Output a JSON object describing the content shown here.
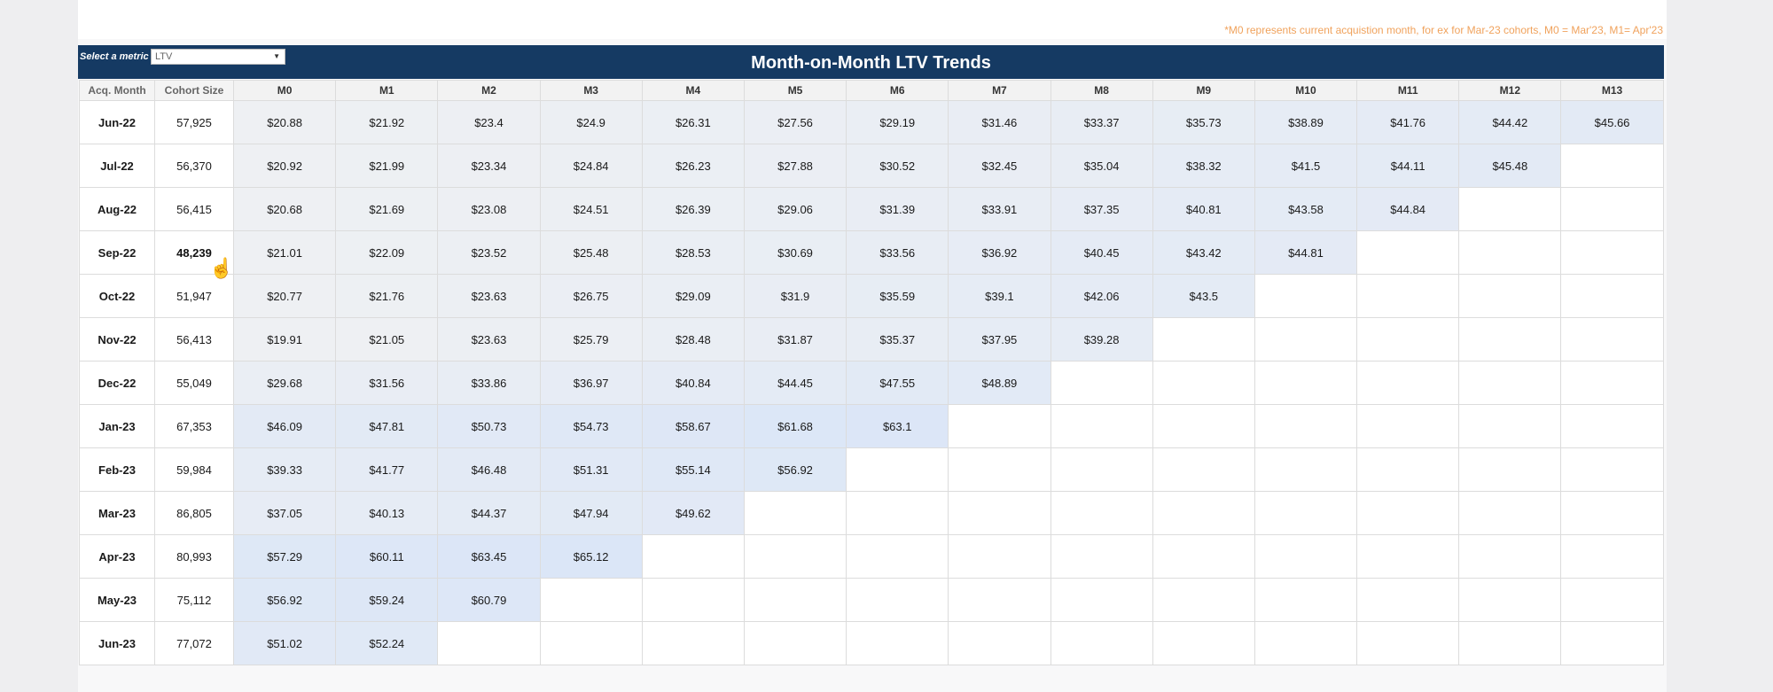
{
  "footnote": "*M0 represents current acquistion month, for ex for Mar-23 cohorts, M0 = Mar'23, M1= Apr'23",
  "metric_selector": {
    "label": "Select a metric",
    "value": "LTV"
  },
  "title": "Month-on-Month LTV Trends",
  "columns": [
    "Acq. Month",
    "Cohort Size",
    "M0",
    "M1",
    "M2",
    "M3",
    "M4",
    "M5",
    "M6",
    "M7",
    "M8",
    "M9",
    "M10",
    "M11",
    "M12",
    "M13"
  ],
  "rows": [
    {
      "month": "Jun-22",
      "size": "57,925",
      "values": [
        "$20.88",
        "$21.92",
        "$23.4",
        "$24.9",
        "$26.31",
        "$27.56",
        "$29.19",
        "$31.46",
        "$33.37",
        "$35.73",
        "$38.89",
        "$41.76",
        "$44.42",
        "$45.66"
      ]
    },
    {
      "month": "Jul-22",
      "size": "56,370",
      "values": [
        "$20.92",
        "$21.99",
        "$23.34",
        "$24.84",
        "$26.23",
        "$27.88",
        "$30.52",
        "$32.45",
        "$35.04",
        "$38.32",
        "$41.5",
        "$44.11",
        "$45.48"
      ]
    },
    {
      "month": "Aug-22",
      "size": "56,415",
      "values": [
        "$20.68",
        "$21.69",
        "$23.08",
        "$24.51",
        "$26.39",
        "$29.06",
        "$31.39",
        "$33.91",
        "$37.35",
        "$40.81",
        "$43.58",
        "$44.84"
      ]
    },
    {
      "month": "Sep-22",
      "size": "48,239",
      "values": [
        "$21.01",
        "$22.09",
        "$23.52",
        "$25.48",
        "$28.53",
        "$30.69",
        "$33.56",
        "$36.92",
        "$40.45",
        "$43.42",
        "$44.81"
      ]
    },
    {
      "month": "Oct-22",
      "size": "51,947",
      "values": [
        "$20.77",
        "$21.76",
        "$23.63",
        "$26.75",
        "$29.09",
        "$31.9",
        "$35.59",
        "$39.1",
        "$42.06",
        "$43.5"
      ]
    },
    {
      "month": "Nov-22",
      "size": "56,413",
      "values": [
        "$19.91",
        "$21.05",
        "$23.63",
        "$25.79",
        "$28.48",
        "$31.87",
        "$35.37",
        "$37.95",
        "$39.28"
      ]
    },
    {
      "month": "Dec-22",
      "size": "55,049",
      "values": [
        "$29.68",
        "$31.56",
        "$33.86",
        "$36.97",
        "$40.84",
        "$44.45",
        "$47.55",
        "$48.89"
      ]
    },
    {
      "month": "Jan-23",
      "size": "67,353",
      "values": [
        "$46.09",
        "$47.81",
        "$50.73",
        "$54.73",
        "$58.67",
        "$61.68",
        "$63.1"
      ]
    },
    {
      "month": "Feb-23",
      "size": "59,984",
      "values": [
        "$39.33",
        "$41.77",
        "$46.48",
        "$51.31",
        "$55.14",
        "$56.92"
      ]
    },
    {
      "month": "Mar-23",
      "size": "86,805",
      "values": [
        "$37.05",
        "$40.13",
        "$44.37",
        "$47.94",
        "$49.62"
      ]
    },
    {
      "month": "Apr-23",
      "size": "80,993",
      "values": [
        "$57.29",
        "$60.11",
        "$63.45",
        "$65.12"
      ]
    },
    {
      "month": "May-23",
      "size": "75,112",
      "values": [
        "$56.92",
        "$59.24",
        "$60.79"
      ]
    },
    {
      "month": "Jun-23",
      "size": "77,072",
      "values": [
        "$51.02",
        "$52.24"
      ]
    }
  ],
  "highlighted_size_row": 3,
  "colors": {
    "header": "#153a63",
    "footnote": "#f0a25c",
    "heat_low": "#eef0f3",
    "heat_high": "#dbe6f7"
  }
}
